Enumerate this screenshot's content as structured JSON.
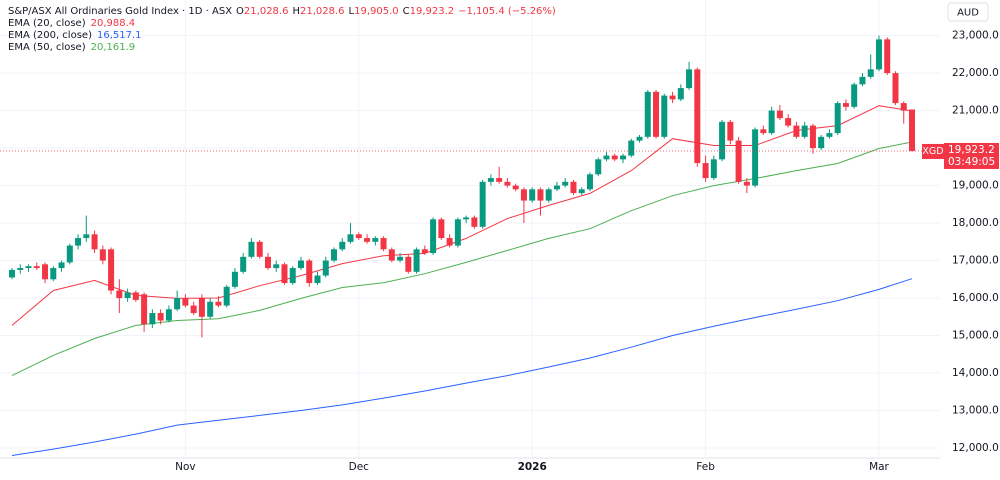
{
  "header": {
    "symbol": "S&P/ASX All Ordinaries Gold Index · 1D · ASX",
    "ohlc": [
      {
        "key": "O",
        "value": "21,028.6"
      },
      {
        "key": "H",
        "value": "21,028.6"
      },
      {
        "key": "L",
        "value": "19,905.0"
      },
      {
        "key": "C",
        "value": "19,923.2"
      }
    ],
    "change": "−1,105.4 (−5.26%)",
    "currency": "AUD"
  },
  "chart_data": {
    "type": "candlestick",
    "ticker": "XGD",
    "countdown": "03:49:05",
    "last_price_label": "19,923.2",
    "categories": [
      null,
      null,
      null,
      null,
      null,
      null,
      null,
      null,
      null,
      null,
      null,
      null,
      null,
      null,
      null,
      null,
      null,
      null,
      null,
      null,
      null,
      "Nov",
      null,
      null,
      null,
      null,
      null,
      null,
      null,
      null,
      null,
      null,
      null,
      null,
      null,
      null,
      null,
      null,
      null,
      null,
      null,
      null,
      "Dec",
      null,
      null,
      null,
      null,
      null,
      null,
      null,
      null,
      null,
      null,
      null,
      null,
      null,
      null,
      null,
      null,
      null,
      null,
      null,
      null,
      "2026",
      null,
      null,
      null,
      null,
      null,
      null,
      null,
      null,
      null,
      null,
      null,
      null,
      null,
      null,
      null,
      null,
      null,
      null,
      null,
      null,
      "Feb",
      null,
      null,
      null,
      null,
      null,
      null,
      null,
      null,
      null,
      null,
      null,
      null,
      null,
      null,
      null,
      null,
      null,
      null,
      null,
      null,
      "Mar",
      null,
      null,
      null,
      null
    ],
    "ylim": [
      11600,
      23950
    ],
    "yticks": [
      {
        "value": 12000,
        "label": "12,000.0"
      },
      {
        "value": 13000,
        "label": "13,000.0"
      },
      {
        "value": 14000,
        "label": "14,000.0"
      },
      {
        "value": 15000,
        "label": "15,000.0"
      },
      {
        "value": 16000,
        "label": "16,000.0"
      },
      {
        "value": 17000,
        "label": "17,000.0"
      },
      {
        "value": 18000,
        "label": "18,000.0"
      },
      {
        "value": 19000,
        "label": "19,000.0"
      },
      {
        "value": 20000,
        "label": "20,000.0"
      },
      {
        "value": 21000,
        "label": "21,000.0"
      },
      {
        "value": 22000,
        "label": "22,000.0"
      },
      {
        "value": 23000,
        "label": "23,000.0"
      }
    ],
    "grid": true,
    "up_color": "#089981",
    "down_color": "#f23645",
    "open": [
      16550,
      16750,
      16800,
      16850,
      16900,
      16500,
      16800,
      16950,
      17400,
      17600,
      17700,
      17300,
      17300,
      16200,
      16000,
      16150,
      16100,
      15300,
      15600,
      15400,
      15700,
      16000,
      15800,
      16000,
      15500,
      15900,
      15800,
      16300,
      16700,
      17100,
      17500,
      17100,
      16800,
      16900,
      16400,
      16800,
      17000,
      16400,
      16600,
      17000,
      17300,
      17500,
      17700,
      17600,
      17500,
      17600,
      17300,
      17000,
      17100,
      16700,
      17300,
      17200,
      18100,
      17600,
      17400,
      18100,
      18150,
      17900,
      19100,
      19200,
      19100,
      19000,
      18900,
      18600,
      18900,
      18600,
      18900,
      19000,
      19100,
      18800,
      18900,
      19300,
      19700,
      19800,
      19700,
      19800,
      20200,
      20300,
      21500,
      20300,
      21400,
      21300,
      21600,
      22100,
      19600,
      19200,
      19700,
      20700,
      20200,
      19100,
      19000,
      20500,
      20400,
      21000,
      20800,
      20600,
      20300,
      20600,
      20000,
      20300,
      20400,
      21200,
      21100,
      21700,
      21900,
      22100,
      22900,
      22000,
      21200,
      21028.6
    ],
    "high": [
      16800,
      16900,
      16900,
      16950,
      16950,
      16850,
      17000,
      17450,
      17700,
      18200,
      17800,
      17400,
      17350,
      16500,
      16250,
      16200,
      16150,
      15700,
      15700,
      15800,
      16200,
      16100,
      15900,
      16100,
      16000,
      16050,
      16350,
      16800,
      17200,
      17600,
      17550,
      17200,
      17000,
      16950,
      16850,
      17100,
      17050,
      16700,
      17100,
      17350,
      17600,
      18000,
      17750,
      17700,
      17650,
      17650,
      17350,
      17200,
      17150,
      17350,
      17400,
      18150,
      18150,
      17700,
      18150,
      18200,
      18200,
      19150,
      19300,
      19500,
      19200,
      19050,
      18950,
      18950,
      18950,
      18950,
      19100,
      19200,
      19150,
      18950,
      19350,
      19750,
      19900,
      19850,
      19850,
      20250,
      20350,
      21550,
      21550,
      21450,
      21500,
      21700,
      22300,
      22150,
      19800,
      19800,
      20750,
      20750,
      20300,
      19200,
      20550,
      20600,
      21100,
      21150,
      20900,
      20700,
      20700,
      20650,
      20350,
      20500,
      21250,
      21300,
      21750,
      22000,
      22500,
      23000,
      22950,
      22050,
      21250,
      21028.6
    ],
    "low": [
      16500,
      16650,
      16700,
      16750,
      16400,
      16450,
      16700,
      16900,
      17300,
      17500,
      17200,
      16900,
      16100,
      15600,
      15900,
      15900,
      15100,
      15200,
      15300,
      15350,
      15650,
      15750,
      15550,
      14950,
      15450,
      15750,
      15750,
      16250,
      16650,
      17050,
      17050,
      16750,
      16700,
      16350,
      16350,
      16750,
      16300,
      16350,
      16550,
      16950,
      17250,
      17450,
      17550,
      17450,
      17400,
      17250,
      16950,
      16950,
      16650,
      16650,
      17150,
      17150,
      17550,
      17350,
      17350,
      18000,
      17850,
      17850,
      19000,
      19050,
      18950,
      18850,
      18000,
      18550,
      18200,
      18550,
      18850,
      18950,
      18750,
      18750,
      18850,
      19250,
      19650,
      19650,
      19600,
      19750,
      20150,
      20250,
      20250,
      20250,
      21200,
      21250,
      21550,
      19500,
      19100,
      19150,
      19650,
      20100,
      19050,
      18800,
      18950,
      20350,
      20350,
      20750,
      20550,
      20250,
      20250,
      19850,
      19950,
      20250,
      20350,
      21000,
      21050,
      21650,
      21850,
      22050,
      21950,
      21150,
      20650,
      19905
    ],
    "close": [
      16750,
      16800,
      16850,
      16800,
      16500,
      16800,
      16950,
      17400,
      17600,
      17700,
      17300,
      17000,
      16200,
      16000,
      16150,
      15950,
      15300,
      15600,
      15400,
      15700,
      16000,
      15800,
      15600,
      15500,
      15900,
      15800,
      16300,
      16700,
      17100,
      17500,
      17100,
      16800,
      16900,
      16400,
      16800,
      17000,
      16400,
      16600,
      17000,
      17300,
      17500,
      17700,
      17600,
      17500,
      17600,
      17300,
      17000,
      17100,
      16700,
      17300,
      17200,
      18100,
      17600,
      17400,
      18100,
      18150,
      17900,
      19100,
      19200,
      19100,
      19000,
      18900,
      18600,
      18900,
      18600,
      18900,
      19000,
      19100,
      18800,
      18900,
      19300,
      19700,
      19800,
      19700,
      19800,
      20200,
      20300,
      21500,
      20300,
      21400,
      21300,
      21600,
      22100,
      19600,
      19200,
      19700,
      20700,
      20200,
      19100,
      19000,
      20500,
      20400,
      21000,
      20800,
      20600,
      20300,
      20600,
      20000,
      20300,
      20400,
      21200,
      21100,
      21700,
      21900,
      22100,
      22900,
      22000,
      21200,
      21000,
      19923.2
    ],
    "lines": [
      {
        "name": "EMA (20, close)",
        "color": "#f23645",
        "x": [
          0,
          5,
          10,
          15,
          20,
          25,
          30,
          35,
          40,
          45,
          50,
          55,
          60,
          65,
          70,
          75,
          80,
          85,
          90,
          95,
          100,
          105,
          109
        ],
        "values": [
          15270,
          16200,
          16470,
          16070,
          15990,
          16000,
          16330,
          16600,
          16920,
          17130,
          17190,
          17590,
          18120,
          18470,
          18790,
          19400,
          20250,
          20070,
          20070,
          20470,
          20600,
          21130,
          20988.4
        ],
        "value_labels": [
          null,
          null,
          null,
          null,
          null,
          null,
          null,
          null,
          null,
          null,
          null,
          null,
          null,
          null,
          null,
          null,
          null,
          null,
          null,
          null,
          null,
          null,
          "20,988.4"
        ]
      },
      {
        "name": "EMA (200, close)",
        "color": "#2962ff",
        "x": [
          0,
          5,
          10,
          15,
          20,
          25,
          30,
          35,
          40,
          45,
          50,
          55,
          60,
          65,
          70,
          75,
          80,
          85,
          90,
          95,
          100,
          105,
          109
        ],
        "values": [
          11800,
          11970,
          12160,
          12370,
          12610,
          12740,
          12870,
          13000,
          13150,
          13330,
          13520,
          13730,
          13930,
          14160,
          14400,
          14690,
          15000,
          15250,
          15480,
          15700,
          15930,
          16230,
          16517.1
        ],
        "value_labels": [
          null,
          null,
          null,
          null,
          null,
          null,
          null,
          null,
          null,
          null,
          null,
          null,
          null,
          null,
          null,
          null,
          null,
          null,
          null,
          null,
          null,
          null,
          "16,517.1"
        ]
      },
      {
        "name": "EMA (50, close)",
        "color": "#4caf50",
        "x": [
          0,
          5,
          10,
          15,
          20,
          25,
          30,
          35,
          40,
          45,
          50,
          55,
          60,
          65,
          70,
          75,
          80,
          85,
          90,
          95,
          100,
          105,
          109
        ],
        "values": [
          13930,
          14470,
          14920,
          15270,
          15400,
          15450,
          15670,
          15990,
          16280,
          16410,
          16650,
          16950,
          17270,
          17590,
          17850,
          18330,
          18730,
          19000,
          19190,
          19400,
          19590,
          19990,
          20161.9
        ],
        "value_labels": [
          null,
          null,
          null,
          null,
          null,
          null,
          null,
          null,
          null,
          null,
          null,
          null,
          null,
          null,
          null,
          null,
          null,
          null,
          null,
          null,
          null,
          null,
          "20,161.9"
        ]
      }
    ]
  }
}
